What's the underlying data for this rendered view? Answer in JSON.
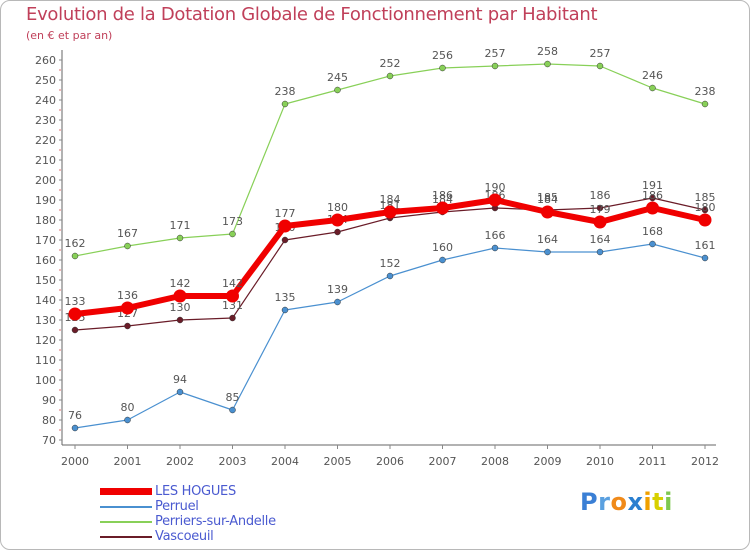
{
  "chart_data": {
    "type": "line",
    "title": "Evolution de la Dotation Globale de Fonctionnement par Habitant",
    "subtitle": "(en € et par an)",
    "xlabel": "",
    "ylabel": "",
    "categories": [
      "2000",
      "2001",
      "2002",
      "2003",
      "2004",
      "2005",
      "2006",
      "2007",
      "2008",
      "2009",
      "2010",
      "2011",
      "2012"
    ],
    "ylim": [
      70,
      260
    ],
    "yticks": [
      "70",
      "80",
      "90",
      "100",
      "110",
      "120",
      "130",
      "140",
      "150",
      "160",
      "170",
      "180",
      "190",
      "200",
      "210",
      "220",
      "230",
      "240",
      "250",
      "260"
    ],
    "grid": false,
    "legend_position": "bottom-left",
    "series": [
      {
        "name": "Perruel",
        "color": "#4a90d0",
        "values": [
          76,
          80,
          94,
          85,
          135,
          139,
          152,
          160,
          166,
          164,
          164,
          168,
          161
        ]
      },
      {
        "name": "Perriers-sur-Andelle",
        "color": "#88d058",
        "values": [
          162,
          167,
          171,
          173,
          238,
          245,
          252,
          256,
          257,
          258,
          257,
          246,
          238
        ]
      },
      {
        "name": "Vascoeuil",
        "color": "#6a1c28",
        "values": [
          125,
          127,
          130,
          131,
          170,
          174,
          181,
          184,
          186,
          185,
          186,
          191,
          185
        ]
      },
      {
        "name": "LES HOGUES",
        "color": "#f00000",
        "values": [
          133,
          136,
          142,
          142,
          177,
          180,
          184,
          186,
          190,
          184,
          179,
          186,
          180
        ]
      }
    ],
    "legend": [
      "LES HOGUES",
      "Perruel",
      "Perriers-sur-Andelle",
      "Vascoeuil"
    ]
  },
  "logo": {
    "letters": [
      "P",
      "r",
      "o",
      "x",
      "i",
      "t",
      "i"
    ],
    "colors": [
      "#3a7fd5",
      "#5aa0e0",
      "#f08a1a",
      "#2a7fd0",
      "#f0a000",
      "#d8d000",
      "#7ec850"
    ]
  },
  "colors": {
    "title": "#c0405a",
    "axis": "#555555",
    "legend_text": "#4a5ad0"
  }
}
